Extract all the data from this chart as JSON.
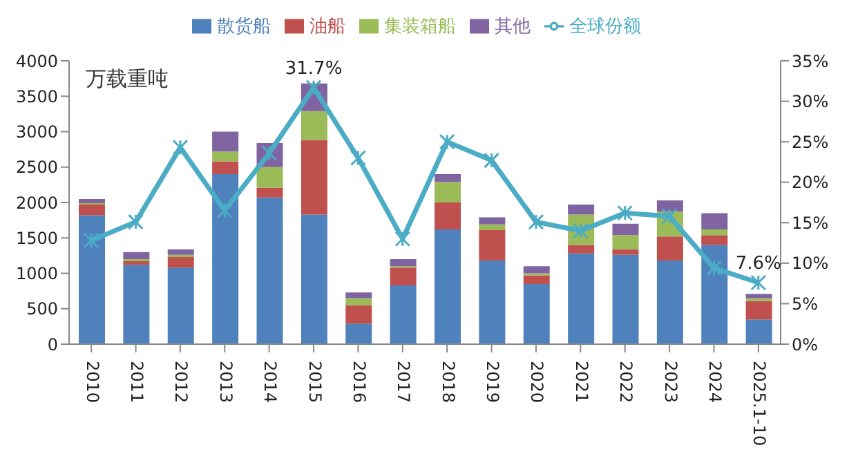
{
  "chart_data": {
    "type": "bar",
    "stacked": true,
    "categories": [
      "2010",
      "2011",
      "2012",
      "2013",
      "2014",
      "2015",
      "2016",
      "2017",
      "2018",
      "2019",
      "2020",
      "2021",
      "2022",
      "2023",
      "2024",
      "2025.1-10"
    ],
    "series": [
      {
        "name": "散货船",
        "color": "#4f81bd",
        "values": [
          1820,
          1120,
          1080,
          2400,
          2070,
          1830,
          290,
          830,
          1620,
          1180,
          850,
          1280,
          1260,
          1180,
          1400,
          350
        ]
      },
      {
        "name": "油船",
        "color": "#c0504d",
        "values": [
          150,
          50,
          150,
          180,
          140,
          1050,
          260,
          250,
          380,
          430,
          120,
          120,
          80,
          340,
          140,
          260
        ]
      },
      {
        "name": "集装箱船",
        "color": "#9bbb59",
        "values": [
          20,
          30,
          30,
          140,
          290,
          410,
          100,
          20,
          290,
          80,
          30,
          430,
          200,
          350,
          80,
          40
        ]
      },
      {
        "name": "其他",
        "color": "#8064a2",
        "values": [
          60,
          100,
          80,
          280,
          340,
          390,
          80,
          100,
          110,
          100,
          100,
          140,
          160,
          160,
          230,
          60
        ]
      },
      {
        "name": "全球份额",
        "type": "line",
        "axis": "y2",
        "color": "#4bacc6",
        "marker": "cross",
        "values": [
          12.8,
          15.1,
          24.3,
          16.5,
          23.6,
          31.7,
          23.0,
          13.0,
          25.0,
          22.7,
          15.1,
          14.0,
          16.2,
          15.8,
          9.4,
          7.6
        ],
        "value_labels": [
          null,
          null,
          null,
          null,
          null,
          "31.7%",
          null,
          null,
          null,
          null,
          null,
          null,
          null,
          null,
          null,
          "7.6%"
        ]
      }
    ],
    "ylim": [
      0,
      4000
    ],
    "yticks": [
      0,
      500,
      1000,
      1500,
      2000,
      2500,
      3000,
      3500,
      4000
    ],
    "y2lim": [
      0,
      35
    ],
    "y2ticks": [
      {
        "value": 0,
        "label": "0%"
      },
      {
        "value": 5,
        "label": "5%"
      },
      {
        "value": 10,
        "label": "10%"
      },
      {
        "value": 15,
        "label": "15%"
      },
      {
        "value": 20,
        "label": "20%"
      },
      {
        "value": 25,
        "label": "25%"
      },
      {
        "value": 30,
        "label": "30%"
      },
      {
        "value": 35,
        "label": "35%"
      }
    ],
    "annotations": [
      "万载重吨"
    ],
    "legend": "top",
    "grid": false
  }
}
